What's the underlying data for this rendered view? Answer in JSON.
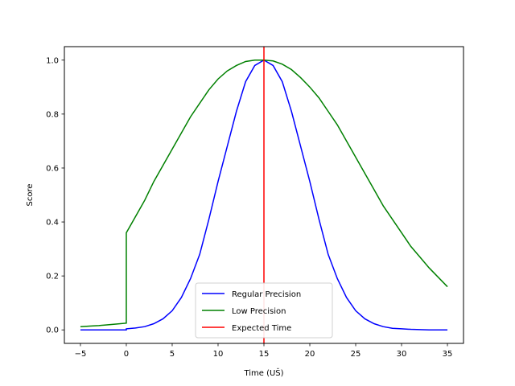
{
  "chart_data": {
    "type": "line",
    "title": "",
    "xlabel": "Time (UŠ)",
    "ylabel": "Score",
    "xlim": [
      -6.75,
      36.75
    ],
    "ylim": [
      -0.05,
      1.05
    ],
    "xticks": [
      -5,
      0,
      5,
      10,
      15,
      20,
      25,
      30,
      35
    ],
    "xtick_labels": [
      "−5",
      "0",
      "5",
      "10",
      "15",
      "20",
      "25",
      "30",
      "35"
    ],
    "yticks": [
      0.0,
      0.2,
      0.4,
      0.6,
      0.8,
      1.0
    ],
    "ytick_labels": [
      "0.0",
      "0.2",
      "0.4",
      "0.6",
      "0.8",
      "1.0"
    ],
    "grid": false,
    "legend_position": "lower center",
    "series": [
      {
        "name": "Regular Precision",
        "color": "#0000ff",
        "x": [
          -5,
          -4,
          -3,
          -2,
          -1,
          0,
          0,
          1,
          2,
          3,
          4,
          5,
          6,
          7,
          8,
          9,
          10,
          11,
          12,
          13,
          14,
          15,
          16,
          17,
          18,
          19,
          20,
          21,
          22,
          23,
          24,
          25,
          26,
          27,
          28,
          29,
          30,
          31,
          32,
          33,
          34,
          35
        ],
        "y": [
          0.0,
          0.0,
          0.0,
          0.0,
          0.0,
          0.0,
          0.004,
          0.007,
          0.012,
          0.023,
          0.041,
          0.071,
          0.12,
          0.19,
          0.28,
          0.41,
          0.55,
          0.68,
          0.81,
          0.92,
          0.98,
          1.0,
          0.98,
          0.92,
          0.81,
          0.68,
          0.55,
          0.41,
          0.28,
          0.19,
          0.12,
          0.071,
          0.041,
          0.023,
          0.012,
          0.006,
          0.004,
          0.002,
          0.001,
          0.0,
          0.0,
          0.0
        ]
      },
      {
        "name": "Low Precision",
        "color": "#008000",
        "x": [
          -5,
          -4,
          -3,
          -2,
          -1,
          0,
          0,
          1,
          2,
          3,
          4,
          5,
          6,
          7,
          8,
          9,
          10,
          11,
          12,
          13,
          14,
          15,
          16,
          17,
          18,
          19,
          20,
          21,
          22,
          23,
          24,
          25,
          26,
          27,
          28,
          29,
          30,
          31,
          32,
          33,
          34,
          35
        ],
        "y": [
          0.012,
          0.014,
          0.016,
          0.019,
          0.022,
          0.025,
          0.36,
          0.42,
          0.48,
          0.55,
          0.61,
          0.67,
          0.73,
          0.79,
          0.84,
          0.89,
          0.93,
          0.96,
          0.98,
          0.995,
          1.0,
          1.0,
          0.997,
          0.985,
          0.965,
          0.935,
          0.9,
          0.86,
          0.81,
          0.76,
          0.7,
          0.64,
          0.58,
          0.52,
          0.46,
          0.41,
          0.36,
          0.31,
          0.27,
          0.23,
          0.195,
          0.16
        ]
      }
    ],
    "vlines": [
      {
        "name": "Expected Time",
        "color": "#ff0000",
        "x": 15
      }
    ]
  }
}
